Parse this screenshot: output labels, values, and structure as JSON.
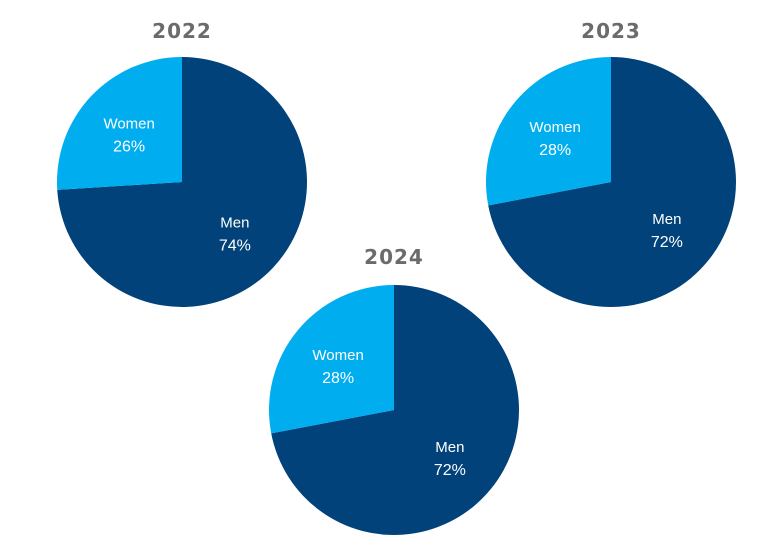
{
  "colors": {
    "men": "#01427a",
    "women": "#00aeef",
    "title": "#6b6b6b"
  },
  "chart_data": [
    {
      "type": "pie",
      "title": "2022",
      "slices": [
        {
          "label": "Men",
          "value": 74,
          "value_label": "74%",
          "color": "#01427a"
        },
        {
          "label": "Women",
          "value": 26,
          "value_label": "26%",
          "color": "#00aeef"
        }
      ]
    },
    {
      "type": "pie",
      "title": "2023",
      "slices": [
        {
          "label": "Men",
          "value": 72,
          "value_label": "72%",
          "color": "#01427a"
        },
        {
          "label": "Women",
          "value": 28,
          "value_label": "28%",
          "color": "#00aeef"
        }
      ]
    },
    {
      "type": "pie",
      "title": "2024",
      "slices": [
        {
          "label": "Men",
          "value": 72,
          "value_label": "72%",
          "color": "#01427a"
        },
        {
          "label": "Women",
          "value": 28,
          "value_label": "28%",
          "color": "#00aeef"
        }
      ]
    }
  ]
}
